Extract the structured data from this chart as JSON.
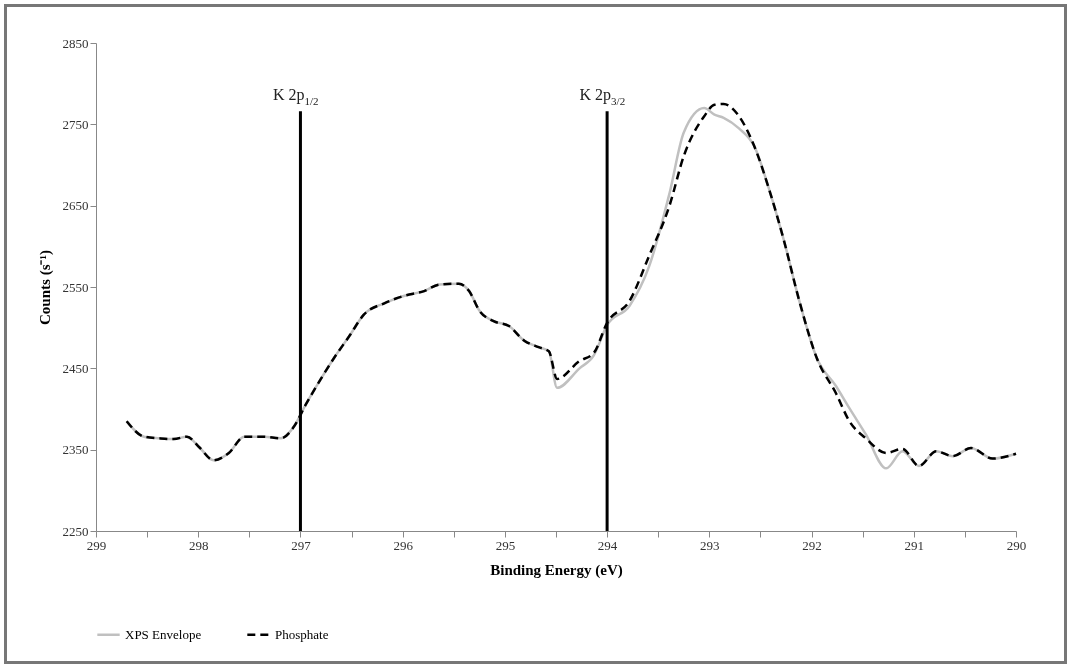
{
  "chart_data": {
    "type": "line",
    "xlabel": "Binding Energy (eV)",
    "ylabel": "Counts (s⁻¹)",
    "x": [
      298.7,
      298.53,
      298.38,
      298.24,
      298.11,
      297.99,
      297.85,
      297.7,
      297.55,
      297.36,
      297.19,
      297.06,
      296.95,
      296.8,
      296.67,
      296.52,
      296.38,
      296.18,
      295.99,
      295.79,
      295.64,
      295.45,
      295.35,
      295.25,
      295.11,
      294.96,
      294.81,
      294.67,
      294.57,
      294.49,
      294.27,
      294.13,
      294.0,
      293.78,
      293.59,
      293.39,
      293.25,
      293.05,
      292.95,
      292.86,
      292.71,
      292.56,
      292.41,
      292.27,
      292.12,
      291.95,
      291.76,
      291.63,
      291.47,
      291.27,
      291.11,
      290.95,
      290.78,
      290.62,
      290.44,
      290.23,
      290.0
    ],
    "series": [
      {
        "name": "XPS Envelope",
        "color": "#c0c0c0",
        "line_style": "solid",
        "values": [
          2385,
          2366,
          2364,
          2363,
          2366,
          2353,
          2337,
          2346,
          2366,
          2366,
          2364,
          2379,
          2405,
          2437,
          2463,
          2490,
          2516,
          2530,
          2539,
          2545,
          2553,
          2554,
          2545,
          2521,
          2508,
          2502,
          2484,
          2476,
          2471,
          2426,
          2450,
          2466,
          2503,
          2527,
          2575,
          2665,
          2740,
          2770,
          2762,
          2758,
          2745,
          2723,
          2668,
          2607,
          2533,
          2463,
          2428,
          2401,
          2369,
          2327,
          2348,
          2330,
          2348,
          2342,
          2352,
          2339,
          2345
        ]
      },
      {
        "name": "Phosphate",
        "color": "#000000",
        "line_style": "dashed",
        "values": [
          2385,
          2366,
          2364,
          2363,
          2366,
          2353,
          2337,
          2346,
          2366,
          2366,
          2364,
          2379,
          2405,
          2437,
          2463,
          2490,
          2516,
          2530,
          2539,
          2545,
          2553,
          2554,
          2545,
          2521,
          2508,
          2502,
          2484,
          2476,
          2471,
          2437,
          2459,
          2469,
          2506,
          2533,
          2588,
          2650,
          2711,
          2760,
          2774,
          2775,
          2760,
          2723,
          2668,
          2607,
          2533,
          2463,
          2419,
          2385,
          2364,
          2346,
          2351,
          2330,
          2348,
          2342,
          2352,
          2339,
          2345
        ]
      }
    ],
    "xlim": [
      299,
      290
    ],
    "xticks": [
      299,
      {
        "value": 298.5,
        "label": null
      },
      298,
      {
        "value": 297.5,
        "label": null
      },
      297,
      {
        "value": 296.5,
        "label": null
      },
      296,
      {
        "value": 295.5,
        "label": null
      },
      295,
      {
        "value": 294.5,
        "label": null
      },
      294,
      {
        "value": 293.5,
        "label": null
      },
      293,
      {
        "value": 292.5,
        "label": null
      },
      292,
      {
        "value": 291.5,
        "label": null
      },
      291,
      {
        "value": 290.5,
        "label": null
      },
      290
    ],
    "ylim": [
      2250,
      2850
    ],
    "yticks": [
      2250,
      2350,
      2450,
      2550,
      2650,
      2750,
      2850
    ],
    "ref_lines": [
      {
        "axis": "x",
        "value": 297,
        "label": "K 2p$_{1/2}$",
        "color": "#000000"
      },
      {
        "axis": "x",
        "value": 294,
        "label": "K 2p$_{3/2}$",
        "color": "#000000"
      }
    ],
    "grid": false,
    "legend": "bottom",
    "marker": "none"
  }
}
